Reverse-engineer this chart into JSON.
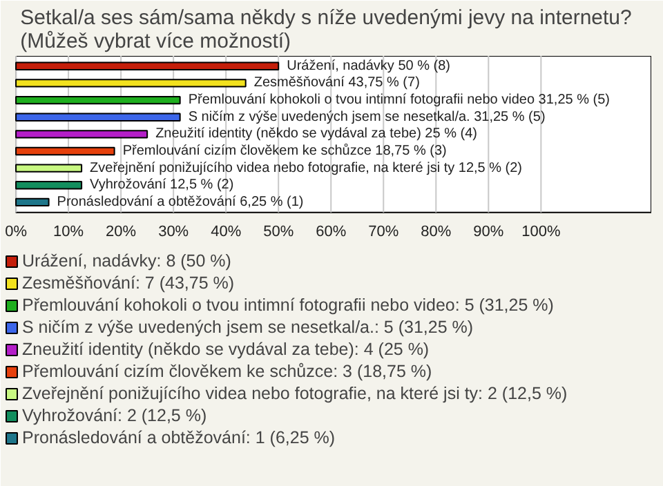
{
  "chart_data": {
    "type": "bar",
    "orientation": "horizontal",
    "stacked": true,
    "title": "Setkal/a ses sám/sama někdy s níže uvedenými jevy na internetu?\n(Můžeš vybrat více možností)",
    "categories": [
      null,
      null,
      null,
      null,
      null,
      null,
      null,
      null,
      null
    ],
    "series": [
      {
        "name": "Urážení, nadávky: 8 (50 %)",
        "color": "#c41e0a",
        "values": [
          50,
          null,
          null,
          null,
          null,
          null,
          null,
          null,
          null
        ],
        "value_labels": [
          "Urážení, nadávky 50 % (8)",
          null,
          null,
          null,
          null,
          null,
          null,
          null,
          null
        ]
      },
      {
        "name": "Zesměšňování: 7 (43,75 %)",
        "color": "#f2e21e",
        "values": [
          null,
          43.75,
          null,
          null,
          null,
          null,
          null,
          null,
          null
        ],
        "value_labels": [
          null,
          "Zesměšňování 43,75 % (7)",
          null,
          null,
          null,
          null,
          null,
          null,
          null
        ]
      },
      {
        "name": "Přemlouvání kohokoli o tvou intimní fotografii nebo video: 5 (31,25 %)",
        "color": "#1eae1e",
        "values": [
          null,
          null,
          31.25,
          null,
          null,
          null,
          null,
          null,
          null
        ],
        "value_labels": [
          null,
          null,
          "Přemlouvání kohokoli o tvou intimní fotografii nebo video 31,25 % (5)",
          null,
          null,
          null,
          null,
          null,
          null
        ]
      },
      {
        "name": "S ničím z výše uvedených jsem se nesetkal/a.: 5 (31,25 %)",
        "color": "#3c66ea",
        "values": [
          null,
          null,
          null,
          31.25,
          null,
          null,
          null,
          null,
          null
        ],
        "value_labels": [
          null,
          null,
          null,
          "S ničím z výše uvedených jsem se nesetkal/a. 31,25 % (5)",
          null,
          null,
          null,
          null,
          null
        ]
      },
      {
        "name": "Zneužití identity (někdo se vydával za tebe): 4 (25 %)",
        "color": "#b41ec8",
        "values": [
          null,
          null,
          null,
          null,
          25,
          null,
          null,
          null,
          null
        ],
        "value_labels": [
          null,
          null,
          null,
          null,
          "Zneužití identity (někdo se vydával za tebe) 25 % (4)",
          null,
          null,
          null,
          null
        ]
      },
      {
        "name": "Přemlouvání cizím člověkem ke schůzce: 3 (18,75 %)",
        "color": "#e6400c",
        "values": [
          null,
          null,
          null,
          null,
          null,
          18.75,
          null,
          null,
          null
        ],
        "value_labels": [
          null,
          null,
          null,
          null,
          null,
          "Přemlouvání cizím člověkem ke schůzce 18,75 % (3)",
          null,
          null,
          null
        ]
      },
      {
        "name": "Zveřejnění ponižujícího videa nebo fotografie, na které jsi ty: 2 (12,5 %)",
        "color": "#c8f882",
        "values": [
          null,
          null,
          null,
          null,
          null,
          null,
          12.5,
          null,
          null
        ],
        "value_labels": [
          null,
          null,
          null,
          null,
          null,
          null,
          "Zveřejnění ponižujícího videa nebo fotografie, na které jsi ty 12,5 % (2)",
          null,
          null
        ]
      },
      {
        "name": "Vyhrožování: 2 (12,5 %)",
        "color": "#128e5e",
        "values": [
          null,
          null,
          null,
          null,
          null,
          null,
          null,
          12.5,
          null
        ],
        "value_labels": [
          null,
          null,
          null,
          null,
          null,
          null,
          null,
          "Vyhrožování 12,5 % (2)",
          null
        ]
      },
      {
        "name": "Pronásledování a obtěžování: 1 (6,25 %)",
        "color": "#1e768a",
        "values": [
          null,
          null,
          null,
          null,
          null,
          null,
          null,
          null,
          6.25
        ],
        "value_labels": [
          null,
          null,
          null,
          null,
          null,
          null,
          null,
          null,
          "Pronásledování a obtěžování 6,25 % (1)"
        ]
      }
    ],
    "xlim": [
      0,
      121
    ],
    "xticks": [
      {
        "value": 0,
        "label": "0%"
      },
      {
        "value": 10,
        "label": "10%"
      },
      {
        "value": 20,
        "label": "20%"
      },
      {
        "value": 30,
        "label": "30%"
      },
      {
        "value": 40,
        "label": "40%"
      },
      {
        "value": 50,
        "label": "50%"
      },
      {
        "value": 60,
        "label": "60%"
      },
      {
        "value": 70,
        "label": "70%"
      },
      {
        "value": 80,
        "label": "80%"
      },
      {
        "value": 90,
        "label": "90%"
      },
      {
        "value": 100,
        "label": "100%"
      }
    ],
    "grid": "x",
    "legend": "bottom",
    "tick_labels": "x"
  }
}
